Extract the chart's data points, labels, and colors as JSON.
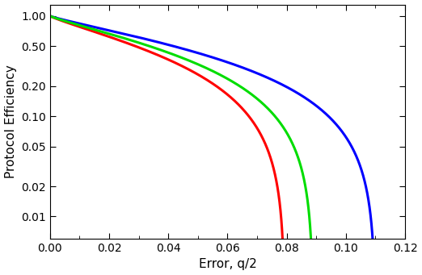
{
  "xlabel": "Error, q/2",
  "ylabel": "Protocol Efficiency",
  "xmin": 0.0,
  "xmax": 0.12,
  "yticks": [
    0.01,
    0.02,
    0.05,
    0.1,
    0.2,
    0.5,
    1.0
  ],
  "ytick_labels": [
    "0.01",
    "0.02",
    "0.05",
    "0.10",
    "0.20",
    "0.50",
    "1.00"
  ],
  "xticks": [
    0.0,
    0.02,
    0.04,
    0.06,
    0.08,
    0.1,
    0.12
  ],
  "blue_color": "#0000FF",
  "red_color": "#FF0000",
  "green_color": "#00DD00",
  "linewidth": 2.2,
  "background_color": "#FFFFFF",
  "ymin": 0.006,
  "ymax": 1.3
}
